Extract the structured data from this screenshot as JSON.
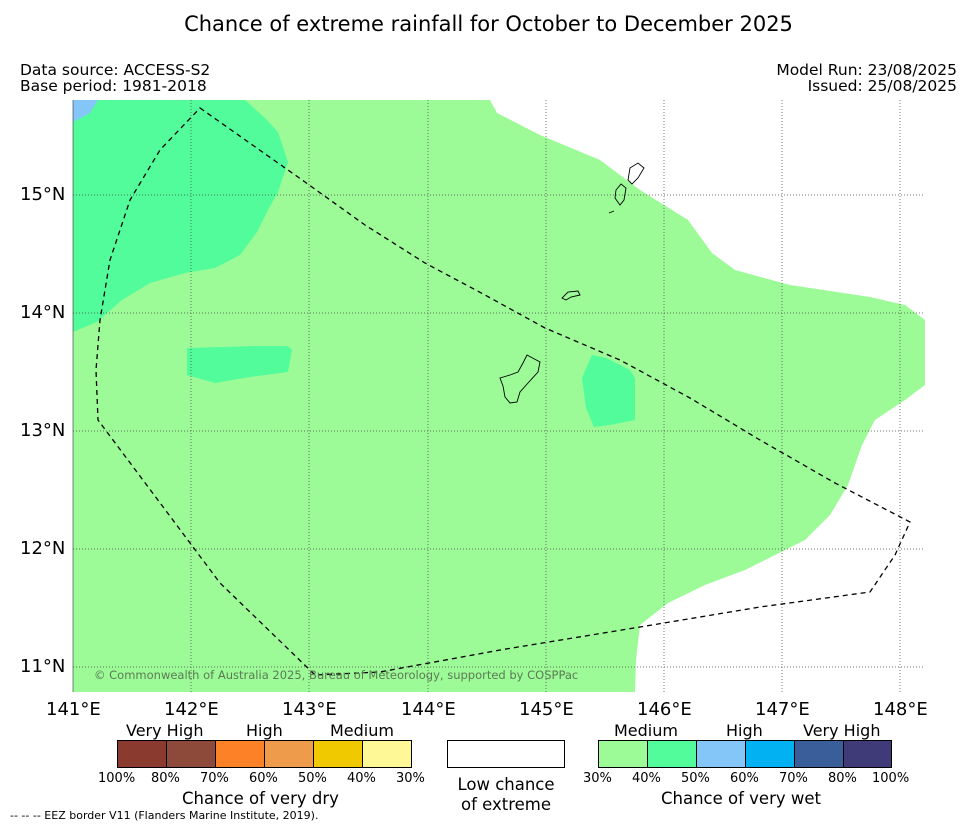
{
  "header": {
    "title": "Chance of extreme rainfall for October to December 2025",
    "data_source": "Data source: ACCESS-S2",
    "base_period": "Base period: 1981-2018",
    "model_run": "Model Run: 23/08/2025",
    "issued": "Issued: 25/08/2025"
  },
  "map": {
    "lat_labels": [
      "15°N",
      "14°N",
      "13°N",
      "12°N",
      "11°N"
    ],
    "lon_labels": [
      "141°E",
      "142°E",
      "143°E",
      "144°E",
      "145°E",
      "146°E",
      "147°E",
      "148°E"
    ],
    "credit": "© Commonwealth of Australia 2025, Bureau of Meteorology, supported by COSPPac",
    "background_color": "#ffffff",
    "regions": [
      {
        "category": "Medium (30-40% very wet)",
        "color": "#9cfb97"
      },
      {
        "category": "Medium (40-50% very wet)",
        "color": "#52fc9b"
      },
      {
        "category": "High (50-60% very wet)",
        "color": "#85c6f9"
      }
    ],
    "eez_border_style": "dashed"
  },
  "legend_dry": {
    "headers": [
      "Very High",
      "High",
      "Medium"
    ],
    "colors": [
      "#8b3a2f",
      "#8d4a3a",
      "#fd8127",
      "#ee9c4b",
      "#f1c900",
      "#fff896"
    ],
    "ticks": [
      "100%",
      "80%",
      "70%",
      "60%",
      "50%",
      "40%",
      "30%"
    ],
    "caption": "Chance of very dry"
  },
  "legend_low": {
    "line1": "Low chance",
    "line2": "of extreme",
    "color": "#ffffff"
  },
  "legend_wet": {
    "headers": [
      "Medium",
      "High",
      "Very High"
    ],
    "colors": [
      "#9cfb97",
      "#52fc9b",
      "#85c6f9",
      "#02b1f1",
      "#3a5e9a",
      "#3f3a78"
    ],
    "ticks": [
      "30%",
      "40%",
      "50%",
      "60%",
      "70%",
      "80%",
      "100%"
    ],
    "caption": "Chance of very wet"
  },
  "footnote": "--  --  -- EEZ border V11 (Flanders Marine Institute, 2019)."
}
